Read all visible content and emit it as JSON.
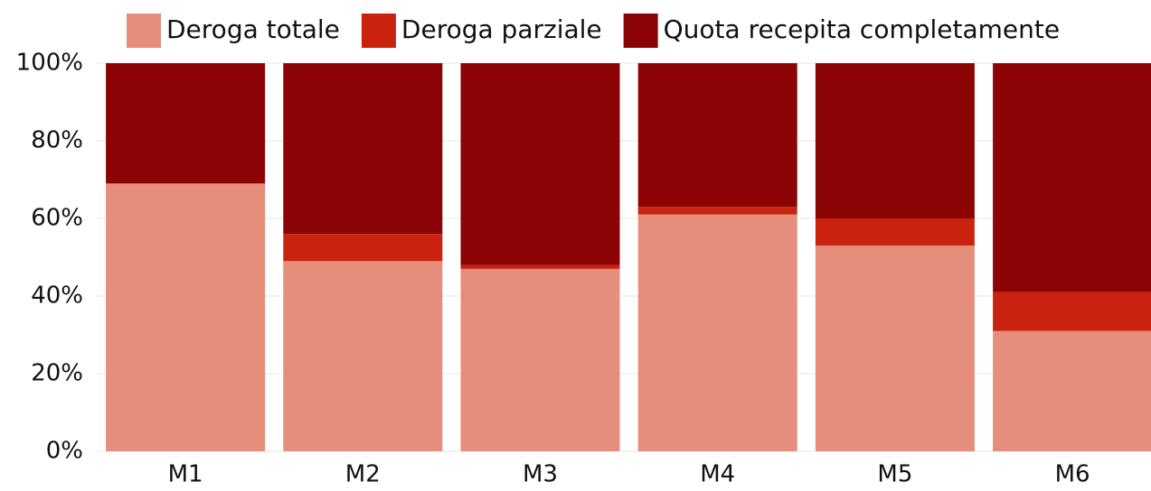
{
  "chart_data": {
    "type": "stacked_bar",
    "categories": [
      "M1",
      "M2",
      "M3",
      "M4",
      "M5",
      "M6"
    ],
    "series": [
      {
        "name": "Deroga totale",
        "color": "#e48e7b",
        "values": [
          69,
          49,
          47,
          61,
          53,
          31
        ]
      },
      {
        "name": "Deroga parziale",
        "color": "#c9230f",
        "values": [
          0,
          7,
          1,
          2,
          7,
          10
        ]
      },
      {
        "name": "Quota recepita completamente",
        "color": "#8b0304",
        "values": [
          31,
          44,
          52,
          37,
          40,
          59
        ]
      }
    ],
    "ylim": [
      0,
      100
    ],
    "yticks": [
      {
        "value": 0,
        "label": "0%"
      },
      {
        "value": 20,
        "label": "20%"
      },
      {
        "value": 40,
        "label": "40%"
      },
      {
        "value": 60,
        "label": "60%"
      },
      {
        "value": 80,
        "label": "80%"
      },
      {
        "value": 100,
        "label": "100%"
      }
    ],
    "grid": true,
    "legend": "top"
  }
}
